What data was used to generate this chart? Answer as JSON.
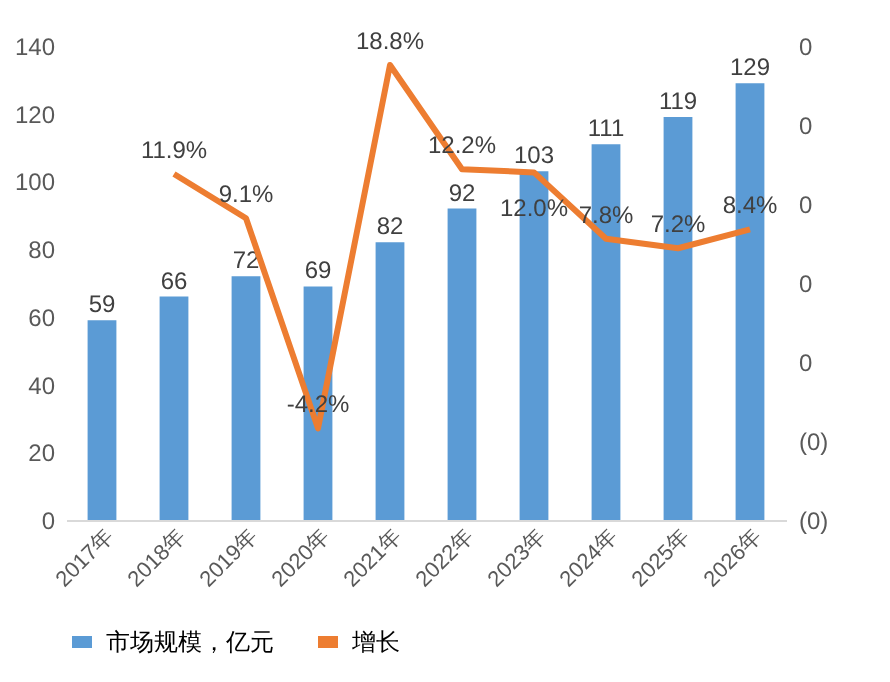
{
  "chart_data": {
    "type": "bar",
    "categories": [
      "2017年",
      "2018年",
      "2019年",
      "2020年",
      "2021年",
      "2022年",
      "2023年",
      "2024年",
      "2025年",
      "2026年"
    ],
    "series": [
      {
        "name": "市场规模，亿元",
        "color": "#5b9bd5",
        "values": [
          59,
          66,
          72,
          69,
          82,
          92,
          103,
          111,
          119,
          129
        ]
      },
      {
        "name": "增长",
        "type": "line",
        "axis": "y2",
        "color": "#ed7d31",
        "values": [
          null,
          0.119,
          0.091,
          -0.042,
          0.188,
          0.122,
          0.12,
          0.078,
          0.072,
          0.084
        ],
        "value_labels": [
          null,
          "11.9%",
          "9.1%",
          "-4.2%",
          "18.8%",
          "12.2%",
          "12.0%",
          "7.8%",
          "7.2%",
          "8.4%"
        ]
      }
    ],
    "ylim": [
      0,
      140
    ],
    "yticks": [
      0,
      20,
      40,
      60,
      80,
      100,
      120,
      140
    ],
    "y2lim": [
      -0.1,
      0.2
    ],
    "y2ticks": [
      {
        "value": -0.1,
        "label": "(0)"
      },
      {
        "value": -0.05,
        "label": "(0)"
      },
      {
        "value": 0,
        "label": "0"
      },
      {
        "value": 0.05,
        "label": "0"
      },
      {
        "value": 0.1,
        "label": "0"
      },
      {
        "value": 0.15,
        "label": "0"
      },
      {
        "value": 0.2,
        "label": "0"
      }
    ],
    "data_labels": true,
    "grid": false,
    "legend": "bottom",
    "marker": "none",
    "line_style": "solid"
  }
}
